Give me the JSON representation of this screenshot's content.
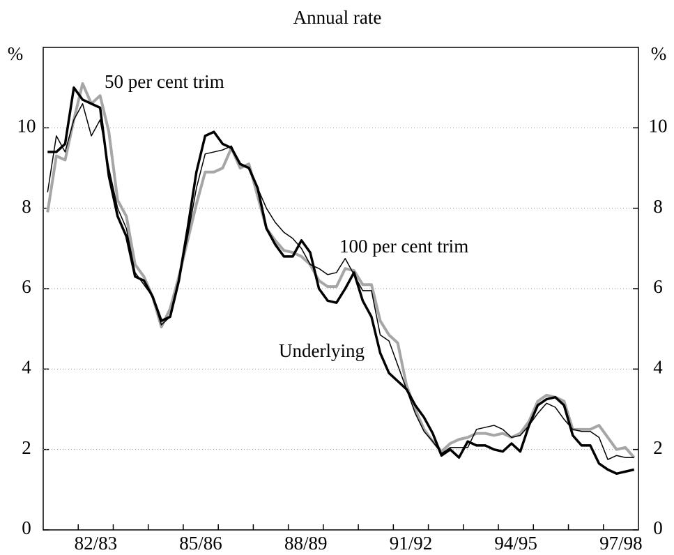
{
  "chart_data": {
    "type": "line",
    "title": "Annual rate",
    "y_unit": "%",
    "y2_unit": "%",
    "categories": [
      null,
      null,
      null,
      null,
      null,
      null,
      "82/83",
      null,
      null,
      null,
      null,
      null,
      null,
      null,
      null,
      null,
      null,
      null,
      "85/86",
      null,
      null,
      null,
      null,
      null,
      null,
      null,
      null,
      null,
      null,
      null,
      "88/89",
      null,
      null,
      null,
      null,
      null,
      null,
      null,
      null,
      null,
      null,
      null,
      "91/92",
      null,
      null,
      null,
      null,
      null,
      null,
      null,
      null,
      null,
      null,
      null,
      "94/95",
      null,
      null,
      null,
      null,
      null,
      null,
      null,
      null,
      null,
      null,
      null,
      "97/98",
      null
    ],
    "series": [
      {
        "name": "50 per cent trim",
        "color": "#a6a6a6",
        "values": [
          7.9,
          9.3,
          9.2,
          10.2,
          11.1,
          10.6,
          10.8,
          9.9,
          8.2,
          7.8,
          6.6,
          6.3,
          5.8,
          5.05,
          5.5,
          6.3,
          7.2,
          8.1,
          8.9,
          8.9,
          9.0,
          9.5,
          9.0,
          9.1,
          8.3,
          7.5,
          7.2,
          6.95,
          6.9,
          6.8,
          6.6,
          6.2,
          6.05,
          6.05,
          6.5,
          6.45,
          6.1,
          6.1,
          5.2,
          4.85,
          4.65,
          3.6,
          3.0,
          2.5,
          2.2,
          1.95,
          2.15,
          2.25,
          2.3,
          2.4,
          2.4,
          2.35,
          2.4,
          2.3,
          2.4,
          2.7,
          3.2,
          3.35,
          3.3,
          3.2,
          2.5,
          2.5,
          2.5,
          2.6,
          2.3,
          2.0,
          2.05,
          1.8
        ]
      },
      {
        "name": "100 per cent trim",
        "color": "#000000",
        "values": [
          8.4,
          9.8,
          9.4,
          10.2,
          10.6,
          9.8,
          10.2,
          9.0,
          8.0,
          7.5,
          6.4,
          6.1,
          5.8,
          5.1,
          5.3,
          6.2,
          7.3,
          8.5,
          9.35,
          9.4,
          9.45,
          9.55,
          9.1,
          9.0,
          8.5,
          8.0,
          7.65,
          7.4,
          7.25,
          7.0,
          6.6,
          6.5,
          6.35,
          6.4,
          6.75,
          6.35,
          5.95,
          5.95,
          4.85,
          4.7,
          4.1,
          3.5,
          2.9,
          2.45,
          2.2,
          1.9,
          2.05,
          2.05,
          2.05,
          2.5,
          2.55,
          2.6,
          2.5,
          2.3,
          2.35,
          2.6,
          2.9,
          3.15,
          3.05,
          2.75,
          2.5,
          2.45,
          2.45,
          2.3,
          1.75,
          1.85,
          1.8,
          1.8
        ]
      },
      {
        "name": "Underlying",
        "color": "#000000",
        "values": [
          9.4,
          9.4,
          9.6,
          11.0,
          10.7,
          10.6,
          10.5,
          8.8,
          7.8,
          7.3,
          6.3,
          6.2,
          5.8,
          5.2,
          5.3,
          6.2,
          7.5,
          8.9,
          9.8,
          9.9,
          9.6,
          9.5,
          9.1,
          9.0,
          8.5,
          7.5,
          7.1,
          6.8,
          6.8,
          7.2,
          6.9,
          6.0,
          5.7,
          5.65,
          6.0,
          6.4,
          5.7,
          5.3,
          4.4,
          3.9,
          3.7,
          3.5,
          3.1,
          2.8,
          2.4,
          1.85,
          2.0,
          1.8,
          2.2,
          2.1,
          2.1,
          2.0,
          1.95,
          2.15,
          1.95,
          2.6,
          3.1,
          3.25,
          3.3,
          3.1,
          2.35,
          2.1,
          2.1,
          1.65,
          1.5,
          1.4,
          1.45,
          1.5
        ]
      }
    ],
    "ylim": [
      0,
      12
    ],
    "yticks": [
      0,
      2,
      4,
      6,
      8,
      10
    ],
    "y2lim": [
      0,
      12
    ],
    "y2ticks": [
      0,
      2,
      4,
      6,
      8,
      10
    ],
    "grid": true
  }
}
